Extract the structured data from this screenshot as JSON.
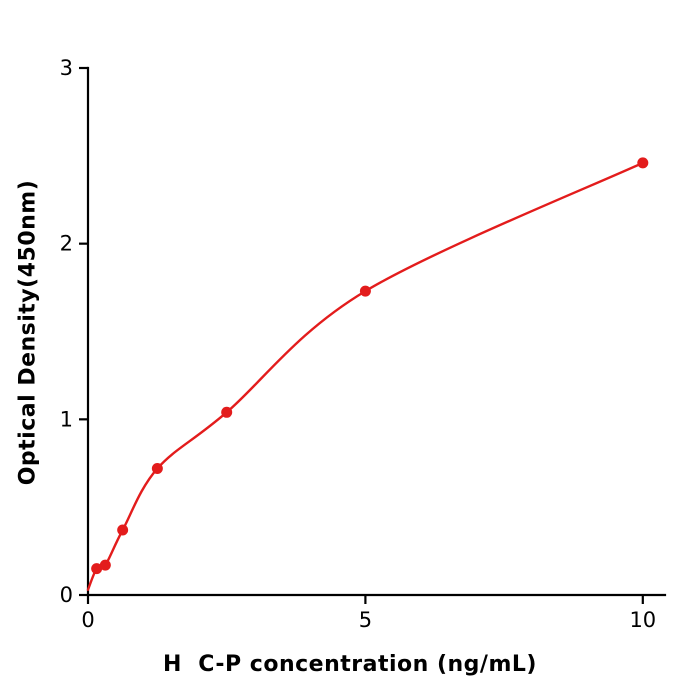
{
  "figure": {
    "background": "#ffffff"
  },
  "axes": {
    "x_title": "H  C-P concentration (ng/mL)",
    "y_title": "Optical Density(450nm)"
  },
  "chart_data": {
    "type": "scatter",
    "title": "",
    "xlabel": "H  C-P concentration (ng/mL)",
    "ylabel": "Optical Density(450nm)",
    "x": [
      0.156,
      0.3125,
      0.625,
      1.25,
      2.5,
      5,
      10
    ],
    "y": [
      0.15,
      0.17,
      0.37,
      0.72,
      1.04,
      1.73,
      2.46
    ],
    "curve_start": [
      0,
      0.03
    ],
    "x_ticks": [
      0,
      5,
      10
    ],
    "y_ticks": [
      0,
      1,
      2,
      3
    ],
    "xlim": [
      0,
      10.4
    ],
    "ylim": [
      0,
      3
    ],
    "grid": false,
    "legend": null,
    "line_color": "#e31c1c",
    "point_color": "#e31c1c",
    "axis_color": "#000000",
    "tick_font_size": 21,
    "point_radius": 5.5,
    "line_width": 2.4,
    "axis_width": 2.2
  }
}
